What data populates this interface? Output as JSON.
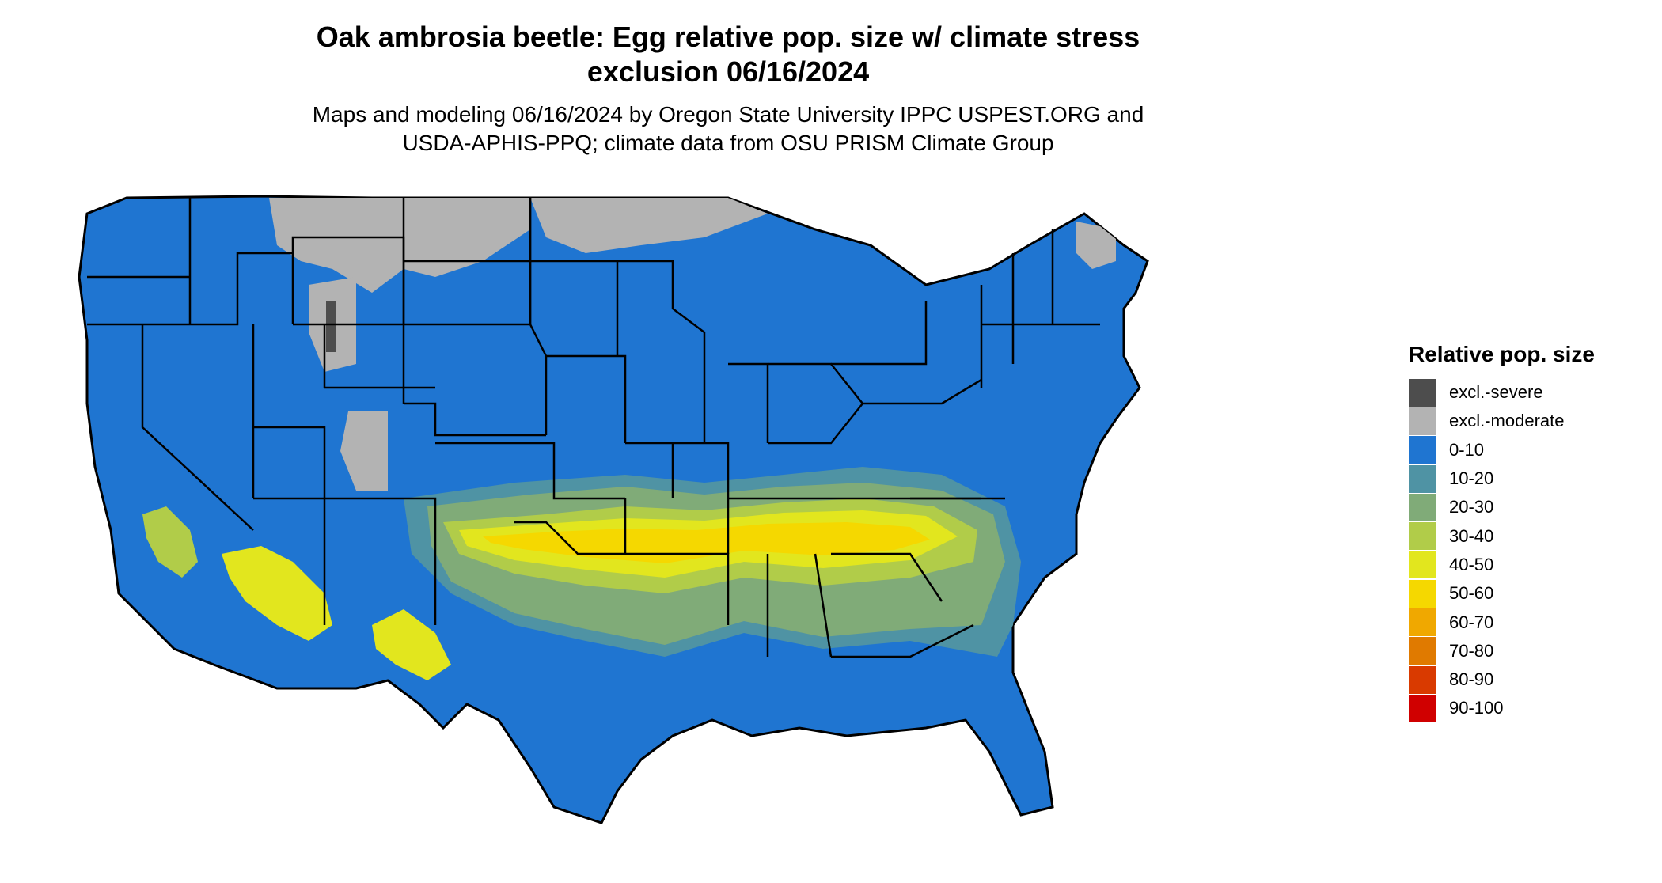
{
  "header": {
    "title_line1": "Oak ambrosia beetle: Egg relative pop. size w/ climate stress",
    "title_line2": "exclusion 06/16/2024",
    "subtitle_line1": "Maps and modeling 06/16/2024 by Oregon State University IPPC USPEST.ORG and",
    "subtitle_line2": "USDA-APHIS-PPQ; climate data from OSU PRISM Climate Group"
  },
  "legend": {
    "title": "Relative pop. size",
    "items": [
      {
        "label": "excl.-severe",
        "color": "#4d4d4d"
      },
      {
        "label": "excl.-moderate",
        "color": "#b3b3b3"
      },
      {
        "label": "0-10",
        "color": "#1f75d1"
      },
      {
        "label": "10-20",
        "color": "#4f93a4"
      },
      {
        "label": "20-30",
        "color": "#80ab78"
      },
      {
        "label": "30-40",
        "color": "#b1cc49"
      },
      {
        "label": "40-50",
        "color": "#e2e61e"
      },
      {
        "label": "50-60",
        "color": "#f5d800"
      },
      {
        "label": "60-70",
        "color": "#f0a800"
      },
      {
        "label": "70-80",
        "color": "#e07a00"
      },
      {
        "label": "80-90",
        "color": "#d93a00"
      },
      {
        "label": "90-100",
        "color": "#d00000"
      }
    ]
  }
}
